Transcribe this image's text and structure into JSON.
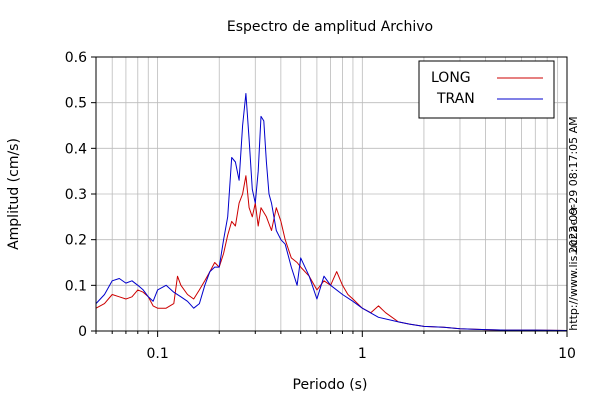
{
  "chart_data": {
    "type": "line",
    "title": "Espectro de amplitud Archivo",
    "xlabel": "Periodo (s)",
    "ylabel": "Amplitud (cm/s)",
    "x_scale": "log",
    "xlim": [
      0.05,
      10
    ],
    "ylim": [
      0,
      0.6
    ],
    "x_ticks": [
      0.1,
      1,
      10
    ],
    "x_tick_labels": [
      "0.1",
      "1",
      "10"
    ],
    "y_ticks": [
      0,
      0.1,
      0.2,
      0.3,
      0.4,
      0.5,
      0.6
    ],
    "y_tick_labels": [
      "0",
      "0.1",
      "0.2",
      "0.3",
      "0.4",
      "0.5",
      "0.6"
    ],
    "grid": true,
    "legend_position": "top-right",
    "series": [
      {
        "name": "LONG",
        "color": "#cc0000",
        "x": [
          0.05,
          0.055,
          0.06,
          0.065,
          0.07,
          0.075,
          0.08,
          0.085,
          0.09,
          0.095,
          0.1,
          0.11,
          0.12,
          0.125,
          0.13,
          0.14,
          0.15,
          0.16,
          0.17,
          0.18,
          0.19,
          0.2,
          0.21,
          0.22,
          0.23,
          0.24,
          0.25,
          0.26,
          0.27,
          0.28,
          0.29,
          0.3,
          0.31,
          0.32,
          0.34,
          0.36,
          0.38,
          0.4,
          0.42,
          0.45,
          0.48,
          0.5,
          0.55,
          0.6,
          0.65,
          0.7,
          0.75,
          0.8,
          0.85,
          0.9,
          1.0,
          1.1,
          1.2,
          1.3,
          1.5,
          1.7,
          2.0,
          2.5,
          3.0,
          4.0,
          5.0,
          7.0,
          10.0
        ],
        "values": [
          0.05,
          0.06,
          0.08,
          0.075,
          0.07,
          0.075,
          0.09,
          0.085,
          0.075,
          0.055,
          0.05,
          0.05,
          0.06,
          0.12,
          0.1,
          0.08,
          0.07,
          0.09,
          0.11,
          0.13,
          0.15,
          0.14,
          0.17,
          0.21,
          0.24,
          0.23,
          0.28,
          0.3,
          0.34,
          0.27,
          0.25,
          0.28,
          0.23,
          0.27,
          0.25,
          0.22,
          0.27,
          0.24,
          0.2,
          0.16,
          0.15,
          0.14,
          0.12,
          0.09,
          0.11,
          0.1,
          0.13,
          0.1,
          0.08,
          0.07,
          0.05,
          0.04,
          0.055,
          0.04,
          0.02,
          0.015,
          0.01,
          0.008,
          0.005,
          0.003,
          0.002,
          0.002,
          0.001
        ]
      },
      {
        "name": "TRAN",
        "color": "#0000cc",
        "x": [
          0.05,
          0.055,
          0.06,
          0.065,
          0.07,
          0.075,
          0.08,
          0.085,
          0.09,
          0.095,
          0.1,
          0.11,
          0.12,
          0.13,
          0.14,
          0.15,
          0.16,
          0.17,
          0.18,
          0.19,
          0.2,
          0.21,
          0.22,
          0.23,
          0.24,
          0.25,
          0.26,
          0.27,
          0.28,
          0.29,
          0.3,
          0.31,
          0.32,
          0.33,
          0.34,
          0.35,
          0.36,
          0.38,
          0.4,
          0.42,
          0.45,
          0.48,
          0.5,
          0.55,
          0.6,
          0.65,
          0.7,
          0.8,
          0.9,
          1.0,
          1.2,
          1.5,
          1.7,
          2.0,
          2.5,
          3.0,
          4.0,
          5.0,
          7.0,
          10.0
        ],
        "values": [
          0.06,
          0.08,
          0.11,
          0.115,
          0.105,
          0.11,
          0.1,
          0.09,
          0.075,
          0.065,
          0.09,
          0.1,
          0.085,
          0.075,
          0.065,
          0.05,
          0.06,
          0.1,
          0.13,
          0.14,
          0.14,
          0.2,
          0.25,
          0.38,
          0.37,
          0.33,
          0.45,
          0.52,
          0.42,
          0.31,
          0.28,
          0.35,
          0.47,
          0.46,
          0.37,
          0.3,
          0.28,
          0.22,
          0.2,
          0.19,
          0.14,
          0.1,
          0.16,
          0.12,
          0.07,
          0.12,
          0.1,
          0.08,
          0.065,
          0.05,
          0.03,
          0.02,
          0.015,
          0.01,
          0.008,
          0.005,
          0.003,
          0.002,
          0.002,
          0.001
        ]
      }
    ]
  },
  "side_texts": {
    "timestamp": "2022-09-29 08:17:05 AM",
    "url": "http://www.lis.ucr.ac.cr"
  }
}
